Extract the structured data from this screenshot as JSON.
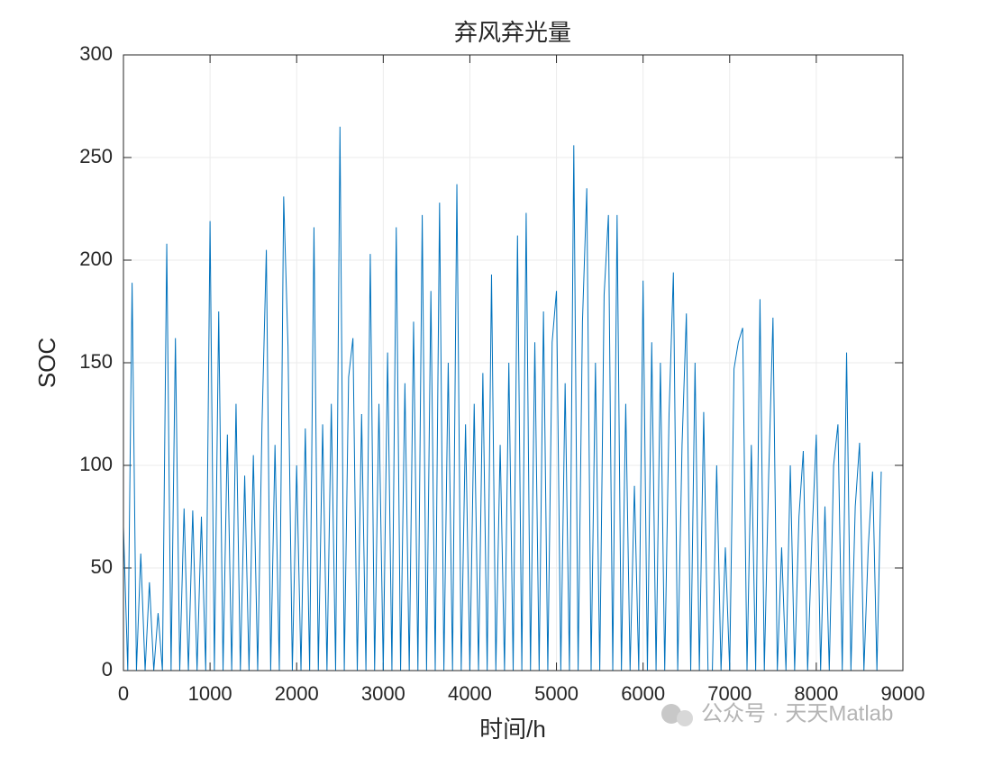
{
  "chart_data": {
    "type": "line",
    "title": "弃风弃光量",
    "xlabel": "时间/h",
    "ylabel": "SOC",
    "watermark": "公众号 · 天天Matlab",
    "xlim": [
      0,
      9000
    ],
    "xticks": [
      0,
      1000,
      2000,
      3000,
      4000,
      5000,
      6000,
      7000,
      8000,
      9000
    ],
    "ylim": [
      0,
      300
    ],
    "yticks": [
      0,
      50,
      100,
      150,
      200,
      250,
      300
    ],
    "grid": true,
    "x": [
      0,
      50,
      100,
      150,
      200,
      250,
      300,
      350,
      400,
      450,
      500,
      550,
      600,
      650,
      700,
      750,
      800,
      850,
      900,
      950,
      1000,
      1050,
      1100,
      1150,
      1200,
      1250,
      1300,
      1350,
      1400,
      1450,
      1500,
      1550,
      1600,
      1650,
      1700,
      1750,
      1800,
      1850,
      1900,
      1950,
      2000,
      2050,
      2100,
      2150,
      2200,
      2250,
      2300,
      2350,
      2400,
      2450,
      2500,
      2550,
      2600,
      2650,
      2700,
      2750,
      2800,
      2850,
      2900,
      2950,
      3000,
      3050,
      3100,
      3150,
      3200,
      3250,
      3300,
      3350,
      3400,
      3450,
      3500,
      3550,
      3600,
      3650,
      3700,
      3750,
      3800,
      3850,
      3900,
      3950,
      4000,
      4050,
      4100,
      4150,
      4200,
      4250,
      4300,
      4350,
      4400,
      4450,
      4500,
      4550,
      4600,
      4650,
      4700,
      4750,
      4800,
      4850,
      4900,
      4950,
      5000,
      5050,
      5100,
      5150,
      5200,
      5250,
      5300,
      5350,
      5400,
      5450,
      5500,
      5550,
      5600,
      5650,
      5700,
      5750,
      5800,
      5850,
      5900,
      5950,
      6000,
      6050,
      6100,
      6150,
      6200,
      6250,
      6300,
      6350,
      6400,
      6450,
      6500,
      6550,
      6600,
      6650,
      6700,
      6750,
      6800,
      6850,
      6900,
      6950,
      7000,
      7050,
      7100,
      7150,
      7200,
      7250,
      7300,
      7350,
      7400,
      7450,
      7500,
      7550,
      7600,
      7650,
      7700,
      7750,
      7800,
      7850,
      7900,
      7950,
      8000,
      8050,
      8100,
      8150,
      8200,
      8250,
      8300,
      8350,
      8400,
      8450,
      8500,
      8550,
      8600,
      8650,
      8700,
      8750
    ],
    "series": [
      {
        "name": "SOC",
        "color": "#0072bd",
        "values": [
          70,
          0,
          189,
          0,
          57,
          0,
          43,
          0,
          28,
          0,
          208,
          0,
          162,
          0,
          79,
          0,
          78,
          0,
          75,
          0,
          219,
          0,
          175,
          0,
          115,
          0,
          130,
          0,
          95,
          0,
          105,
          0,
          120,
          205,
          0,
          110,
          0,
          231,
          158,
          0,
          100,
          0,
          118,
          0,
          216,
          0,
          120,
          0,
          130,
          0,
          265,
          0,
          143,
          162,
          0,
          125,
          0,
          203,
          0,
          130,
          0,
          155,
          0,
          216,
          0,
          140,
          0,
          170,
          0,
          222,
          0,
          185,
          0,
          228,
          0,
          150,
          0,
          237,
          0,
          120,
          0,
          130,
          0,
          145,
          0,
          193,
          0,
          110,
          0,
          150,
          0,
          212,
          0,
          223,
          0,
          160,
          0,
          175,
          0,
          160,
          185,
          0,
          140,
          0,
          256,
          0,
          170,
          235,
          0,
          150,
          0,
          183,
          222,
          0,
          222,
          0,
          130,
          0,
          90,
          0,
          190,
          0,
          160,
          0,
          150,
          0,
          125,
          194,
          0,
          110,
          174,
          0,
          150,
          0,
          126,
          0,
          0,
          100,
          0,
          60,
          0,
          147,
          160,
          167,
          0,
          110,
          0,
          181,
          0,
          95,
          172,
          0,
          60,
          0,
          100,
          0,
          75,
          107,
          0,
          65,
          115,
          0,
          80,
          0,
          100,
          120,
          0,
          155,
          0,
          80,
          111,
          0,
          60,
          97,
          0,
          97
        ]
      }
    ]
  }
}
